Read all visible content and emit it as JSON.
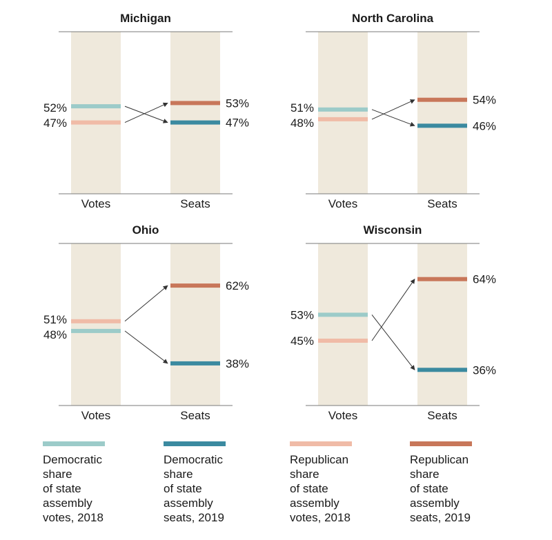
{
  "chart_data": [
    {
      "type": "slope",
      "title": "Michigan",
      "categories": [
        "Votes",
        "Seats"
      ],
      "ylim": [
        0,
        100
      ],
      "series": [
        {
          "name": "Democratic share of state assembly votes, 2018",
          "values": [
            52,
            null
          ],
          "label": "52%"
        },
        {
          "name": "Republican share of state assembly votes, 2018",
          "values": [
            47,
            null
          ],
          "label": "47%"
        },
        {
          "name": "Republican share of state assembly seats, 2019",
          "values": [
            null,
            53
          ],
          "label": "53%"
        },
        {
          "name": "Democratic share of state assembly seats, 2019",
          "values": [
            null,
            47
          ],
          "label": "47%"
        }
      ]
    },
    {
      "type": "slope",
      "title": "North Carolina",
      "categories": [
        "Votes",
        "Seats"
      ],
      "ylim": [
        0,
        100
      ],
      "series": [
        {
          "name": "Democratic share of state assembly votes, 2018",
          "values": [
            51,
            null
          ],
          "label": "51%"
        },
        {
          "name": "Republican share of state assembly votes, 2018",
          "values": [
            48,
            null
          ],
          "label": "48%"
        },
        {
          "name": "Republican share of state assembly seats, 2019",
          "values": [
            null,
            54
          ],
          "label": "54%"
        },
        {
          "name": "Democratic share of state assembly seats, 2019",
          "values": [
            null,
            46
          ],
          "label": "46%"
        }
      ]
    },
    {
      "type": "slope",
      "title": "Ohio",
      "categories": [
        "Votes",
        "Seats"
      ],
      "ylim": [
        0,
        100
      ],
      "series": [
        {
          "name": "Republican share of state assembly votes, 2018",
          "values": [
            51,
            null
          ],
          "label": "51%"
        },
        {
          "name": "Democratic share of state assembly votes, 2018",
          "values": [
            48,
            null
          ],
          "label": "48%"
        },
        {
          "name": "Republican share of state assembly seats, 2019",
          "values": [
            null,
            62
          ],
          "label": "62%"
        },
        {
          "name": "Democratic share of state assembly seats, 2019",
          "values": [
            null,
            38
          ],
          "label": "38%"
        }
      ]
    },
    {
      "type": "slope",
      "title": "Wisconsin",
      "categories": [
        "Votes",
        "Seats"
      ],
      "ylim": [
        0,
        100
      ],
      "series": [
        {
          "name": "Democratic share of state assembly votes, 2018",
          "values": [
            53,
            null
          ],
          "label": "53%"
        },
        {
          "name": "Republican share of state assembly votes, 2018",
          "values": [
            45,
            null
          ],
          "label": "45%"
        },
        {
          "name": "Republican share of state assembly seats, 2019",
          "values": [
            null,
            64
          ],
          "label": "64%"
        },
        {
          "name": "Democratic share of state assembly seats, 2019",
          "values": [
            null,
            36
          ],
          "label": "36%"
        }
      ]
    }
  ],
  "legend": [
    {
      "key": "dem_votes",
      "line1": "Democratic",
      "line2": "share",
      "line3": "of state",
      "line4": "assembly",
      "line5": "votes, 2018",
      "color": "#9ccbc9"
    },
    {
      "key": "dem_seats",
      "line1": "Democratic",
      "line2": "share",
      "line3": "of state",
      "line4": "assembly",
      "line5": "seats, 2019",
      "color": "#3b8aa0"
    },
    {
      "key": "rep_votes",
      "line1": "Republican",
      "line2": "share",
      "line3": "of state",
      "line4": "assembly",
      "line5": "votes, 2018",
      "color": "#f0bba7"
    },
    {
      "key": "rep_seats",
      "line1": "Republican",
      "line2": "share",
      "line3": "of state",
      "line4": "assembly",
      "line5": "seats, 2019",
      "color": "#c8775a"
    }
  ],
  "colors": {
    "column_bg": "#efe9dc",
    "axis": "#7a7a7a",
    "arrow": "#333333"
  }
}
